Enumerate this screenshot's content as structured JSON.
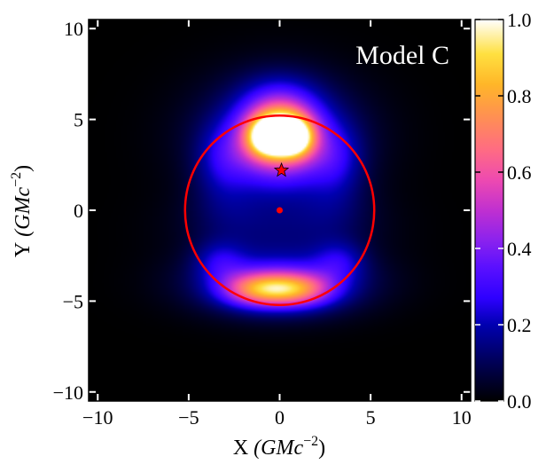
{
  "chart_data": {
    "type": "heatmap",
    "annotation": "Model C",
    "xlabel_main": "X",
    "xlabel_unit": "(GMc",
    "xlabel_exp": "−2",
    "xlabel_close": ")",
    "ylabel_main": "Y",
    "ylabel_unit": "(GMc",
    "ylabel_exp": "−2",
    "ylabel_close": ")",
    "xlim": [
      -10.5,
      10.5
    ],
    "ylim": [
      -10.5,
      10.5
    ],
    "xticks": [
      {
        "value": -10,
        "label": "−10"
      },
      {
        "value": -5,
        "label": "−5"
      },
      {
        "value": 0,
        "label": "0"
      },
      {
        "value": 5,
        "label": "5"
      },
      {
        "value": 10,
        "label": "10"
      }
    ],
    "yticks": [
      {
        "value": -10,
        "label": "−10"
      },
      {
        "value": -5,
        "label": "−5"
      },
      {
        "value": 0,
        "label": "0"
      },
      {
        "value": 5,
        "label": "5"
      },
      {
        "value": 10,
        "label": "10"
      }
    ],
    "colorbar": {
      "range": [
        0.0,
        1.0
      ],
      "ticks": [
        {
          "value": 0.0,
          "label": "0.0"
        },
        {
          "value": 0.2,
          "label": "0.2"
        },
        {
          "value": 0.4,
          "label": "0.4"
        },
        {
          "value": 0.6,
          "label": "0.6"
        },
        {
          "value": 0.8,
          "label": "0.8"
        },
        {
          "value": 1.0,
          "label": "1.0"
        }
      ],
      "colormap": "gnuplot2"
    },
    "circle": {
      "cx": 0,
      "cy": 0,
      "r": 5.2,
      "color": "#ff0000"
    },
    "star_marker": {
      "x": 0.1,
      "y": 2.2,
      "color": "#ff0000"
    },
    "center_dot": {
      "x": 0,
      "y": 0,
      "color": "#ff0000"
    },
    "intensity_blobs": [
      {
        "x": -0.6,
        "y": 4.0,
        "sx": 0.8,
        "sy": 0.7,
        "amp": 0.7
      },
      {
        "x": 0.75,
        "y": 4.0,
        "sx": 0.75,
        "sy": 0.7,
        "amp": 0.7
      },
      {
        "x": 0.0,
        "y": 4.9,
        "sx": 1.2,
        "sy": 0.8,
        "amp": 0.35
      },
      {
        "x": 0.0,
        "y": 3.6,
        "sx": 1.8,
        "sy": 1.4,
        "amp": 0.45
      },
      {
        "x": 0.0,
        "y": 6.2,
        "sx": 1.5,
        "sy": 1.0,
        "amp": 0.15
      },
      {
        "x": 0.0,
        "y": 4.0,
        "sx": 3.1,
        "sy": 2.3,
        "amp": 0.22
      },
      {
        "x": -3.2,
        "y": 2.7,
        "sx": 1.0,
        "sy": 1.3,
        "amp": 0.12
      },
      {
        "x": 3.2,
        "y": 2.7,
        "sx": 1.0,
        "sy": 1.3,
        "amp": 0.12
      },
      {
        "x": -1.2,
        "y": -4.35,
        "sx": 1.4,
        "sy": 0.65,
        "amp": 0.48
      },
      {
        "x": 1.0,
        "y": -4.35,
        "sx": 1.4,
        "sy": 0.65,
        "amp": 0.45
      },
      {
        "x": 0.0,
        "y": -4.0,
        "sx": 3.2,
        "sy": 1.2,
        "amp": 0.3
      },
      {
        "x": -3.3,
        "y": -2.8,
        "sx": 1.0,
        "sy": 0.8,
        "amp": 0.15
      },
      {
        "x": 3.3,
        "y": -2.8,
        "sx": 1.0,
        "sy": 0.8,
        "amp": 0.15
      },
      {
        "x": 0.0,
        "y": -0.9,
        "sx": 3.5,
        "sy": 1.3,
        "amp": 0.1
      },
      {
        "x": -3.0,
        "y": 0.3,
        "sx": 1.4,
        "sy": 1.3,
        "amp": 0.06
      },
      {
        "x": 3.0,
        "y": 0.3,
        "sx": 1.4,
        "sy": 1.3,
        "amp": 0.06
      }
    ]
  }
}
